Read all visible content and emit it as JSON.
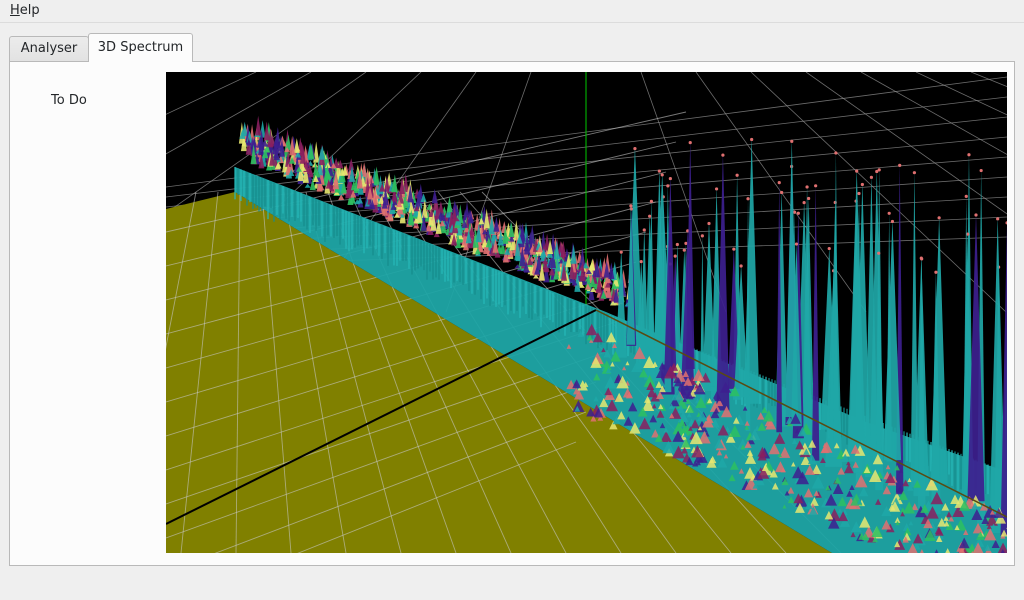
{
  "menu": {
    "items": [
      {
        "label": "Help",
        "mnemonic": "H",
        "rest": "elp"
      }
    ]
  },
  "tabs": [
    {
      "label": "Analyser",
      "active": false
    },
    {
      "label": "3D Spectrum",
      "active": true
    }
  ],
  "pane": {
    "side_label": "To Do"
  },
  "viewport": {
    "background": "#000000",
    "floor_color": "#808000",
    "grid_color": "#c8c8c8",
    "axis_line_color": "#000000",
    "vertical_axis_color": "#00c800",
    "surface_colors": [
      "#1fa7a7",
      "#3d1f8f",
      "#8a1f5f",
      "#2dc060",
      "#e07070",
      "#e8e870"
    ]
  }
}
